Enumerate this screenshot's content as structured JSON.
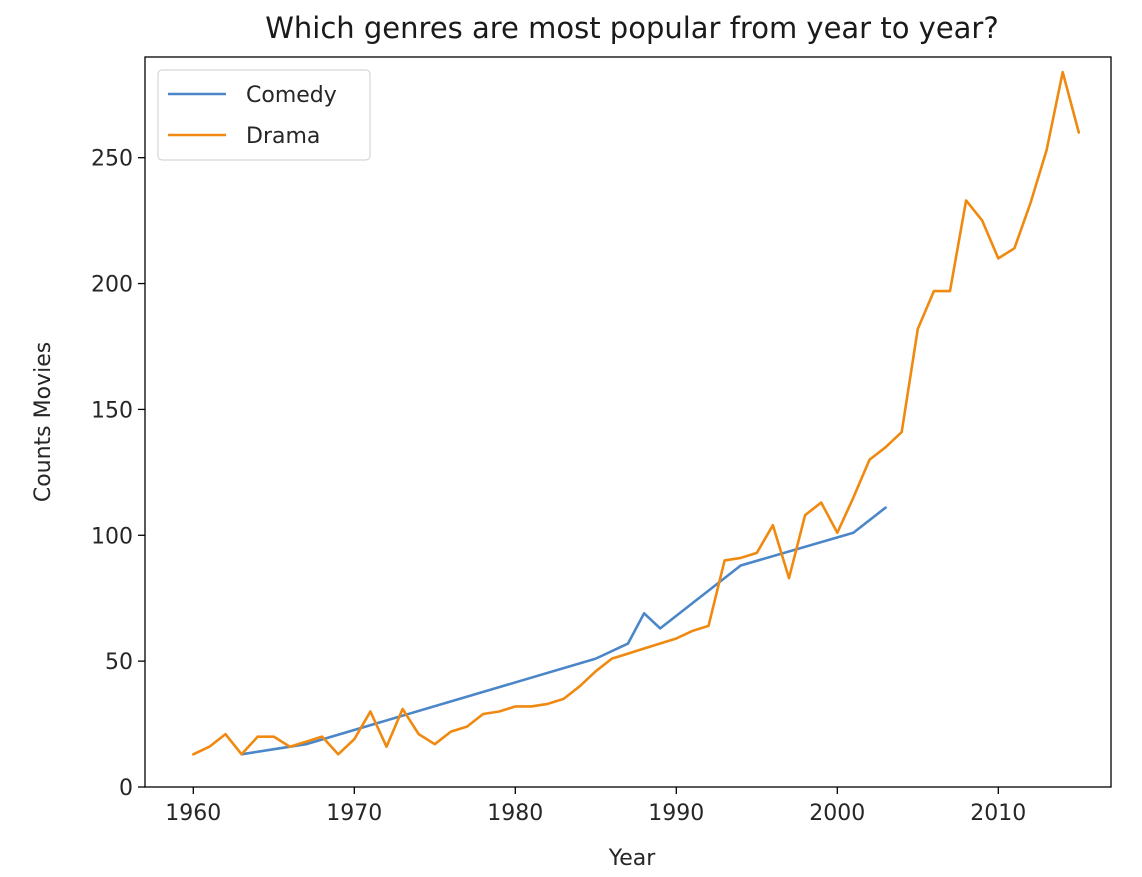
{
  "chart_data": {
    "type": "line",
    "title": "Which genres are most popular from year to year?",
    "xlabel": "Year",
    "ylabel": "Counts Movies",
    "xlim": [
      1957,
      2017
    ],
    "ylim": [
      0,
      290
    ],
    "xticks": [
      1960,
      1970,
      1980,
      1990,
      2000,
      2010
    ],
    "yticks": [
      0,
      50,
      100,
      150,
      200,
      250
    ],
    "grid": false,
    "legend_position": "top-left",
    "series": [
      {
        "name": "Comedy",
        "color": "#4a86c8",
        "x": [
          1963,
          1967,
          1985,
          1987,
          1988,
          1989,
          1994,
          2001,
          2003
        ],
        "y": [
          13,
          17,
          51,
          57,
          69,
          63,
          88,
          101,
          111
        ]
      },
      {
        "name": "Drama",
        "color": "#f0890f",
        "x": [
          1960,
          1961,
          1962,
          1963,
          1964,
          1965,
          1966,
          1967,
          1968,
          1969,
          1970,
          1971,
          1972,
          1973,
          1974,
          1975,
          1976,
          1977,
          1978,
          1979,
          1980,
          1981,
          1982,
          1983,
          1984,
          1985,
          1986,
          1987,
          1988,
          1989,
          1990,
          1991,
          1992,
          1993,
          1994,
          1995,
          1996,
          1997,
          1998,
          1999,
          2000,
          2001,
          2002,
          2003,
          2004,
          2005,
          2006,
          2007,
          2008,
          2009,
          2010,
          2011,
          2012,
          2013,
          2014,
          2015
        ],
        "y": [
          13,
          16,
          21,
          13,
          20,
          20,
          16,
          18,
          20,
          13,
          19,
          30,
          16,
          31,
          21,
          17,
          22,
          24,
          29,
          30,
          32,
          32,
          33,
          35,
          40,
          46,
          51,
          53,
          55,
          57,
          59,
          62,
          64,
          90,
          91,
          93,
          104,
          83,
          108,
          113,
          101,
          115,
          130,
          135,
          141,
          182,
          197,
          197,
          233,
          225,
          210,
          214,
          232,
          253,
          284,
          260
        ]
      }
    ]
  }
}
